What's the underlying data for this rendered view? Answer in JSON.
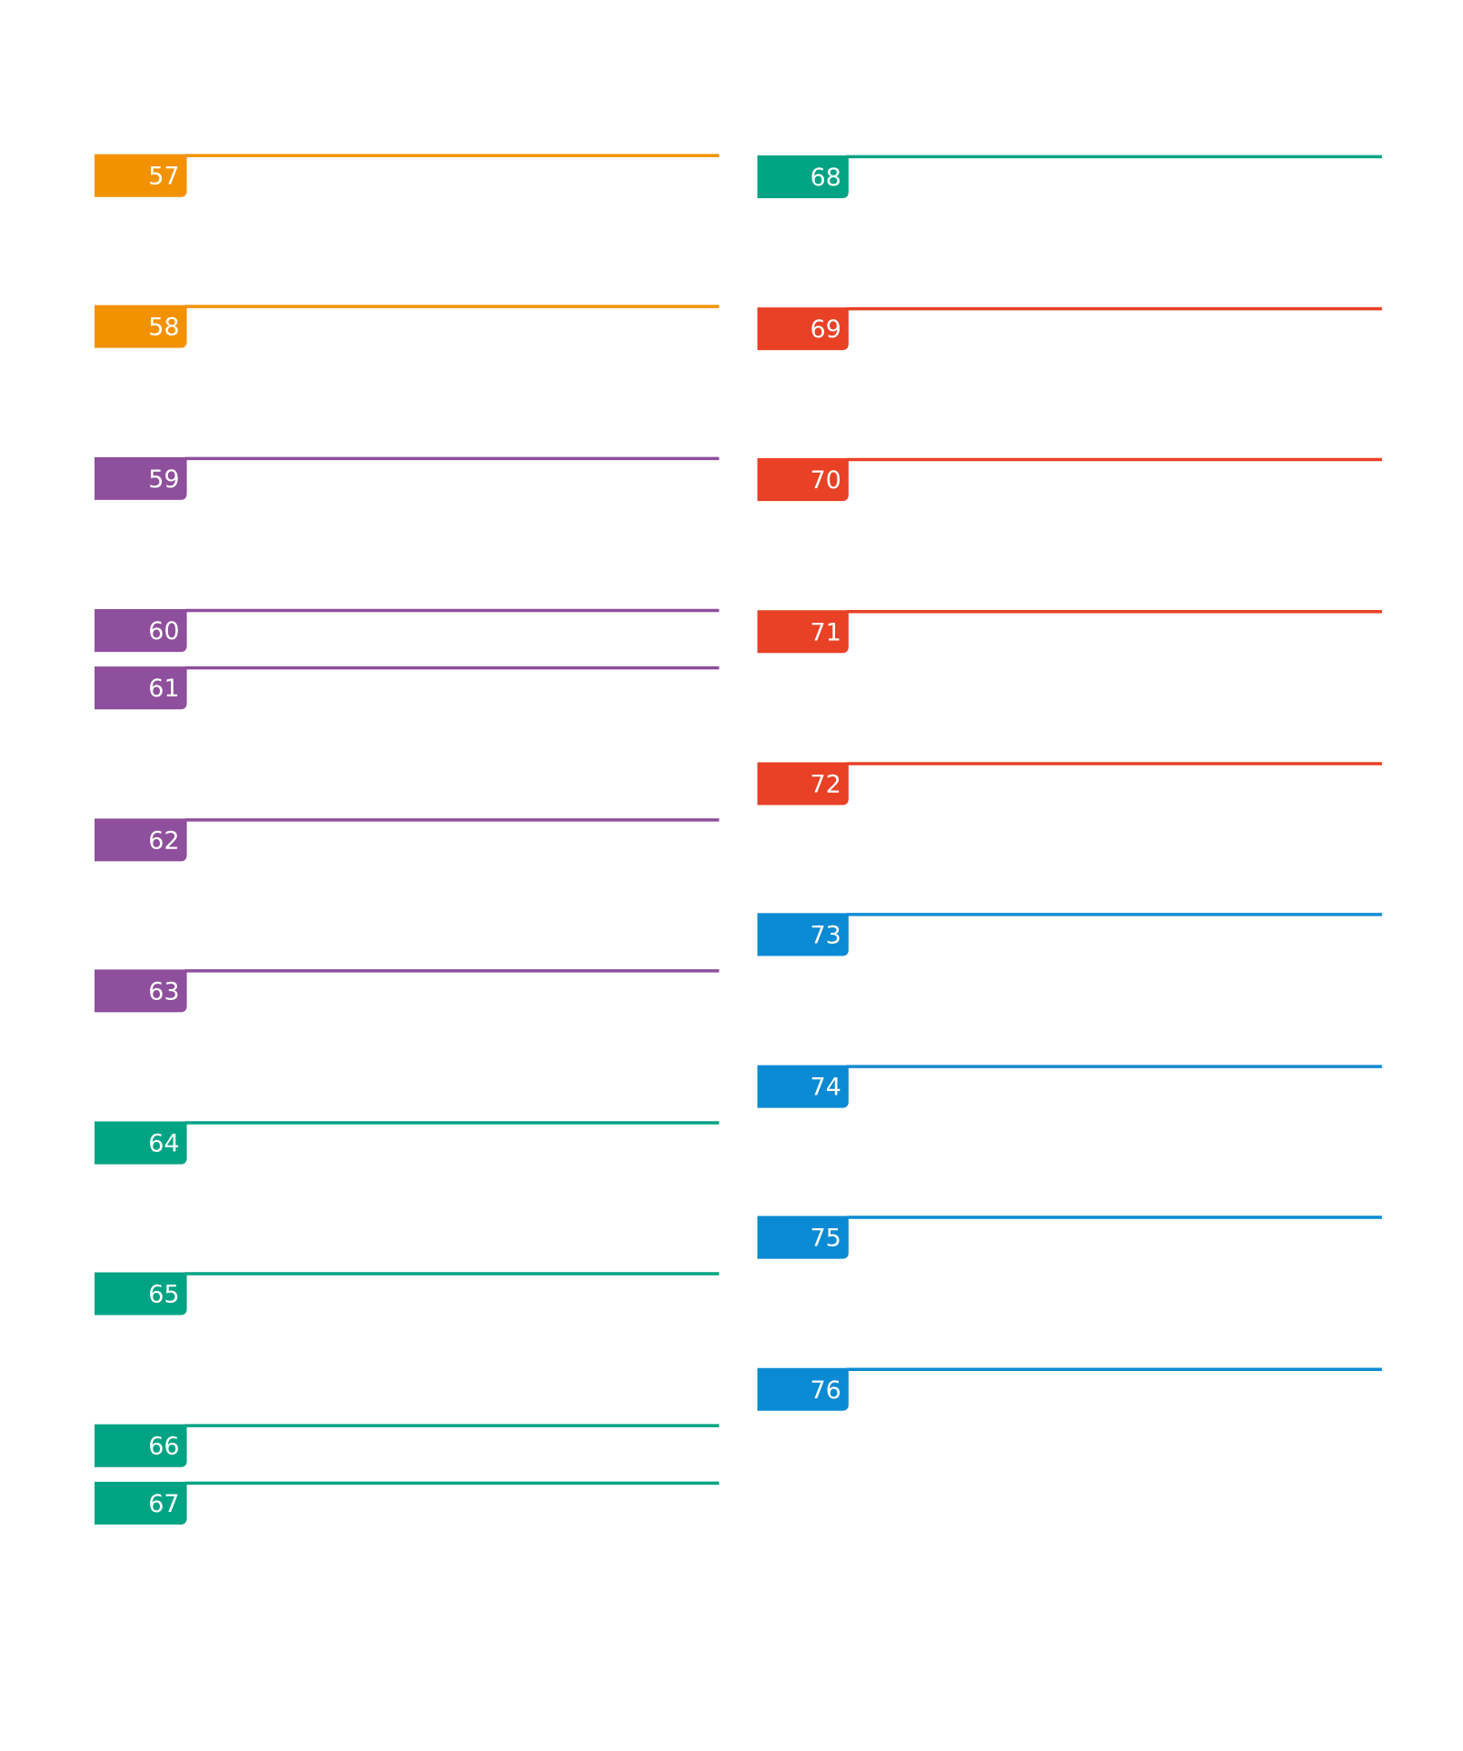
{
  "sections": {
    "left": [
      {
        "label": "57",
        "color": "#f39200"
      },
      {
        "label": "58",
        "color": "#f39200"
      },
      {
        "label": "59",
        "color": "#8e4f9c"
      },
      {
        "label": "60",
        "color": "#8e4f9c"
      },
      {
        "label": "61",
        "color": "#8e4f9c"
      },
      {
        "label": "62",
        "color": "#8e4f9c"
      },
      {
        "label": "63",
        "color": "#8e4f9c"
      },
      {
        "label": "64",
        "color": "#00a383"
      },
      {
        "label": "65",
        "color": "#00a383"
      },
      {
        "label": "66",
        "color": "#00a383"
      },
      {
        "label": "67",
        "color": "#00a383"
      }
    ],
    "right": [
      {
        "label": "68",
        "color": "#00a383"
      },
      {
        "label": "69",
        "color": "#e84125"
      },
      {
        "label": "70",
        "color": "#e84125"
      },
      {
        "label": "71",
        "color": "#e84125"
      },
      {
        "label": "72",
        "color": "#e84125"
      },
      {
        "label": "73",
        "color": "#0a8ad2"
      },
      {
        "label": "74",
        "color": "#0a8ad2"
      },
      {
        "label": "75",
        "color": "#0a8ad2"
      },
      {
        "label": "76",
        "color": "#0a8ad2"
      }
    ]
  }
}
